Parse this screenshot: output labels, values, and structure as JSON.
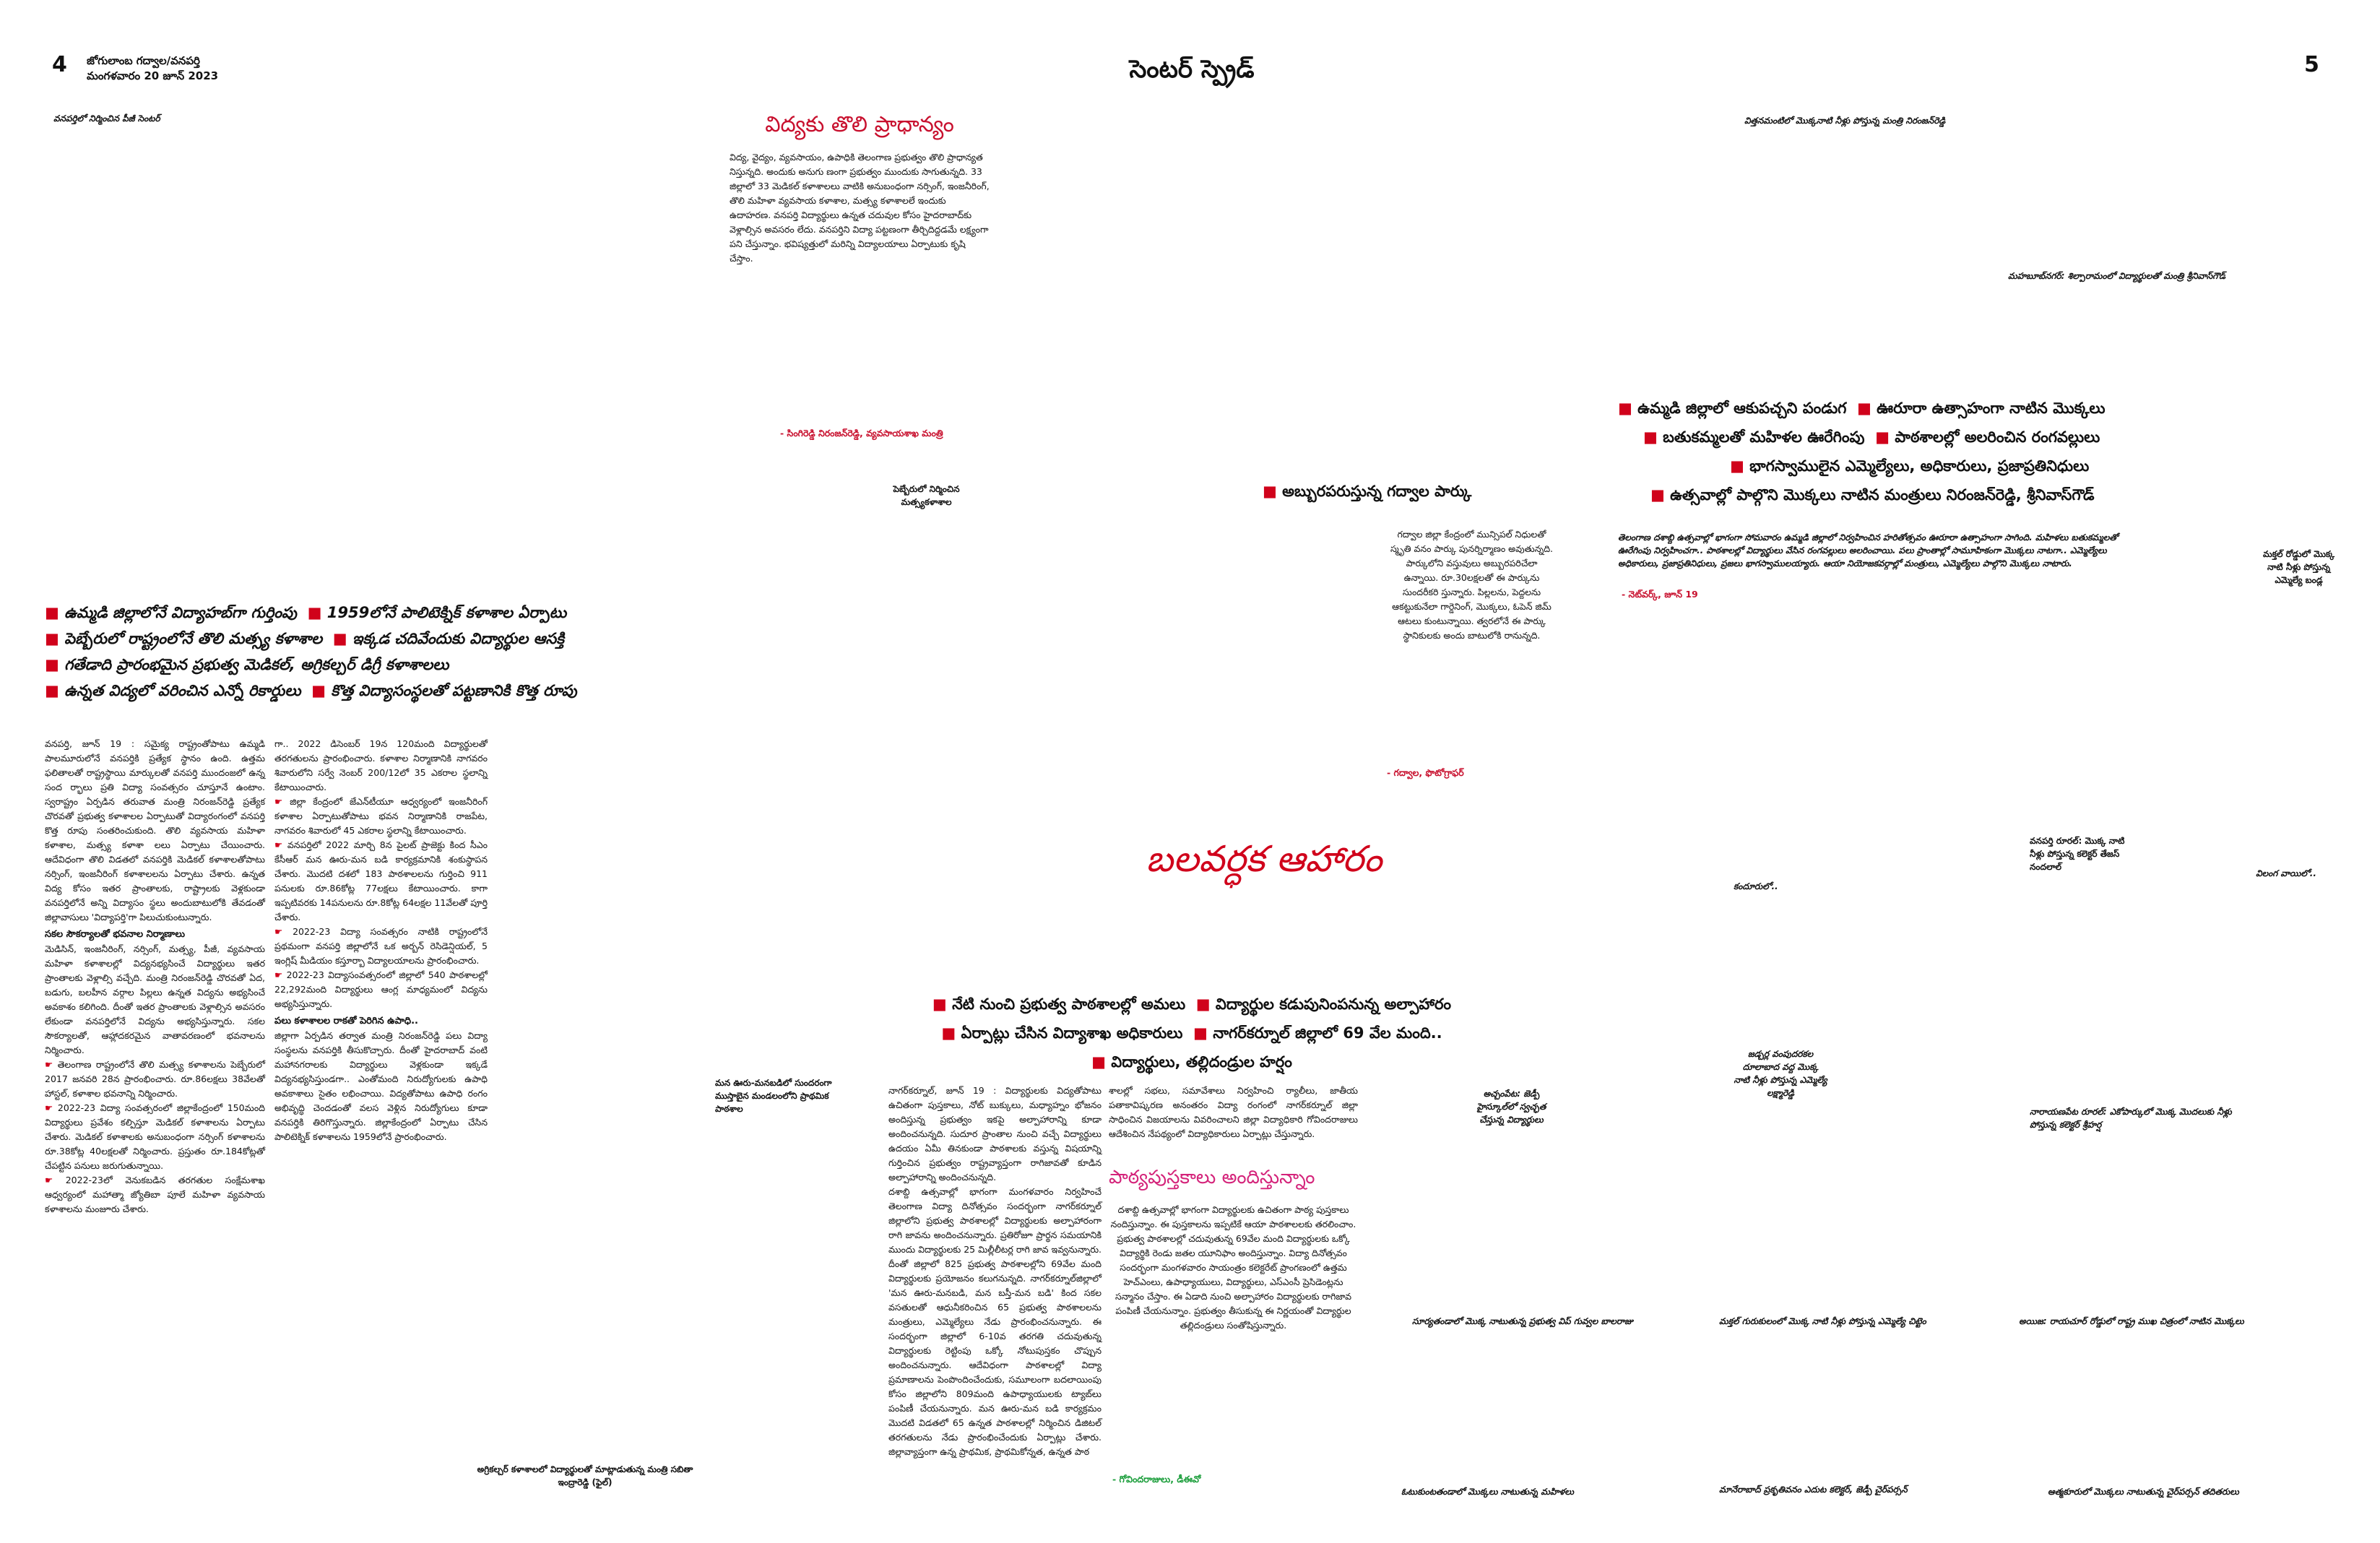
{
  "header": {
    "page_left": "4",
    "page_right": "5",
    "masthead_line1": "జోగులాంబ గద్వాల/వనపర్తి",
    "masthead_line2": "మంగళవారం 20 జూన్ 2023",
    "title": "సెంటర్ స్ప్రెడ్"
  },
  "left": {
    "top_caption": "వనపర్తిలో నిర్మించిన పీజీ సెంటర్",
    "section_title": "విద్యకు తొలి ప్రాధాన్యం",
    "intro": "విద్య, వైద్యం, వ్యవసాయం, ఉపాధికి తెలంగాణ ప్రభుత్వం తొలి ప్రాధాన్యత నిస్తున్నది. అందుకు అనుగు ణంగా ప్రభుత్వం ముందుకు సాగుతున్నది. 33 జిల్లాలో 33 మెడికల్ కళాశాలలు వాటికి అనుబంధంగా నర్సింగ్, ఇంజనీరింగ్, తొలి మహిళా వ్యవసాయ కళాశాల, మత్స్య కళాశాలలే ఇందుకు ఉదాహరణ. వనపర్తి విద్యార్థులు ఉన్నత చదువుల కోసం హైదరాబాద్‌కు వెళ్లాల్సిన అవసరం లేదు. వనపర్తిని విద్యా పట్టణంగా తీర్చిదిద్దడమే లక్ష్యంగా పని చేస్తున్నాం. భవిష్యత్తులో మరిన్ని విద్యాలయాలు ఏర్పాటుకు కృషి చేస్తాం.",
    "intro_signature": "- సింగిరెడ్డి నిరంజన్‌రెడ్డి, వ్యవసాయశాఖ మంత్రి",
    "photo_caption": "పెబ్బేరులో నిర్మించిన మత్స్యకళాశాల",
    "headlines": [
      [
        "ఉమ్మడి జిల్లాలోనే విద్యాహబ్‌గా గుర్తింపు",
        "1959లోనే పాలిటెక్నిక్ కళాశాల ఏర్పాటు"
      ],
      [
        "పెబ్బేరులో రాష్ట్రంలోనే తొలి మత్స్య కళాశాల",
        "ఇక్కడ చదివేందుకు విద్యార్థుల ఆసక్తి"
      ],
      [
        "గతేడాది ప్రారంభమైన ప్రభుత్వ మెడికల్, అగ్రికల్చర్ డిగ్రీ కళాశాలలు"
      ],
      [
        "ఉన్నత విద్యలో వరించిన ఎన్నో రికార్డులు",
        "కొత్త విద్యాసంస్థలతో పట్టణానికి కొత్త రూపు"
      ]
    ],
    "col1": "వనపర్తి, జూన్ 19 : సమైక్య రాష్ట్రంతోపాటు ఉమ్మడి పాలమూరులోనే వనపర్తికి ప్రత్యేక స్థానం ఉంది. ఉత్తమ ఫలితాలతో రాష్ట్రస్థాయి మార్కులతో వనపర్తి ముందంజలో ఉన్న సంద ర్భాలు ప్రతి విద్యా సంవత్సరం చూస్తూనే ఉంటాం. స్వరాష్ట్రం ఏర్పడిన తరువాత మంత్రి నిరంజన్‌రెడ్డి ప్రత్యేక చొరవతో ప్రభుత్వ కళాశాలల ఏర్పాటుతో విద్యారంగంలో వనపర్తి కొత్త రూపు సంతరించుకుంది. తొలి వ్యవసాయ మహిళా కళాశాల, మత్స్య కళాశా లలు ఏర్పాటు చేయించారు. ఆదేవిధంగా తొలి విడతలో వనపర్తికి మెడికల్ కళాశాలతోపాటు నర్సింగ్, ఇంజనీరింగ్ కళాశాలలను ఏర్పాటు చేశారు. ఉన్నత విద్య కోసం ఇతర ప్రాంతాలకు, రాష్ట్రాలకు వెళ్లకుండా వనపర్తిలోనే అన్ని విద్యాసం స్థలు అందుబాటులోకి తేవడంతో జిల్లావాసులు 'విద్యాపర్తి'గా పిలుచుకుంటున్నారు.",
    "col1_sub": "సకల సౌకర్యాలతో భవనాల నిర్మాణాలు",
    "col1b": "మెడిసిన్, ఇంజనీరింగ్, నర్సింగ్, మత్స్య, పీజీ, వ్యవసాయ మహిళా కళాశాలల్లో విద్యనభ్యసించే విద్యార్థులు ఇతర ప్రాంతాలకు వెళ్లాల్సి వచ్చేది. మంత్రి నిరంజన్‌రెడ్డి చొరవతో ఏద, బడుగు, బలహీన వర్గాల పిల్లలు ఉన్నత విద్యను అభ్యసించే అవకాశం కలిగింది. దీంతో ఇతర ప్రాంతాలకు వెళ్లాల్సిన అవసరం లేకుండా వనపర్తిలోనే విద్యను అభ్యసిస్తున్నారు. సకల సౌకర్యాలతో, ఆహ్లాదకరమైన వాతావరణంలో భవనాలను నిర్మించారు.",
    "col1_b1": "తెలంగాణ రాష్ట్రంలోనే తొలి మత్స్య కళాశాలను పెబ్బేరులో 2017 జనవరి 28న ప్రారంభించారు. రూ.86లక్షలు 38వేలతో హాస్టల్, కళాశాల భవనాన్ని నిర్మించారు.",
    "col1_b2": "2022-23 విద్యా సంవత్సరంలో జిల్లాకేంద్రంలో 150మంది విద్యార్థులు ప్రవేశం కల్పిస్తూ మెడికల్ కళాశాలను ఏర్పాటు చేశారు. మెడికల్ కళాశాలకు అనుబంధంగా నర్సింగ్ కళాశాలను రూ.38కోట్ల 40లక్షలతో నిర్మించారు. ప్రస్తుతం రూ.184కోట్లతో చేపట్టిన పనులు జరుగుతున్నాయి.",
    "col1_b3": "2022-23లో వెనుకబడిన తరగతుల సంక్షేమశాఖ ఆధ్వర్యంలో మహాత్మా జ్యోతిబా పూలే మహిళా వ్యవసాయ కళాశాలను మంజూరు చేశారు.",
    "col2": "గా.. 2022 డిసెంబర్ 19న 120మంది విద్యార్థులతో తరగతులను ప్రారంభించారు. కళాశాల నిర్మాణానికి నాగవరం శివారులోని సర్వే నెంబర్ 200/12లో 35 ఎకరాల స్థలాన్ని కేటాయించారు.",
    "col2_b1": "జిల్లా కేంద్రంలో జేఎన్‌టీయూ ఆధ్వర్యంలో ఇంజనీరింగ్ కళాశాల ఏర్పాటుతోపాటు భవన నిర్మాణానికి రాజపేట, నాగవరం శివారులో 45 ఎకరాల స్థలాన్ని కేటాయించారు.",
    "col2_b2": "వనపర్తిలో 2022 మార్చి 8న పైలట్ ప్రాజెక్టు కింద సీఎం కేసీఆర్ మన ఊరు-మన బడి కార్యక్రమానికి శంకుస్థాపన చేశారు. మొదటి దశలో 183 పాఠశాలలను గుర్తించి 911 పనులకు రూ.86కోట్ల 77లక్షలు కేటాయించారు. కాగా ఇప్పటివరకు 14పనులను రూ.8కోట్ల 64లక్షల 11వేలతో పూర్తి చేశారు.",
    "col2_b3": "2022-23 విద్యా సంవత్సరం నాటికి రాష్ట్రంలోనే ప్రథమంగా వనపర్తి జిల్లాలోనే ఒక అర్బన్ రెసిడెన్షియల్, 5 ఇంగ్లిష్ మీడియం కస్తూర్బా విద్యాలయాలను ప్రారంభించారు.",
    "col2_b4": "2022-23 విద్యాసంవత్సరంలో జిల్లాలో 540 పాఠశాలల్లో 22,292మంది విద్యార్థులు ఆంగ్ల మాధ్యమంలో విద్యను అభ్యసిస్తున్నారు.",
    "col2_sub": "పలు కళాశాలల రాకతో పెరిగిన ఉపాధి..",
    "col2b": "జిల్లాగా ఏర్పడిన తర్వాత మంత్రి నిరంజన్‌రెడ్డి పలు విద్యా సంస్థలను వనపర్తికి తీసుకొచ్చారు. దీంతో హైదరాబాద్ వంటి మహానగరాలకు విద్యార్థులు వెళ్లకుండా ఇక్కడే విద్యనభ్యసిస్తుండగా.. ఎంతోమంది నిరుద్యోగులకు ఉపాధి అవకాశాలు సైతం లభించాయి. విద్యతోపాటు ఉపాధి రంగం అభివృద్ధి చెందడంతో వలస వెళ్లిన నిరుద్యోగులు కూడా వనపర్తికి తిరిగొస్తున్నారు. జిల్లాకేంద్రంలో ఏర్పాటు చేసిన పాలిటెక్నిక్ కళాశాలను 1959లోనే ప్రారంభించారు.",
    "bottom_caption": "అగ్రికల్చర్ కళాశాలలో విద్యార్థులతో మాట్లాడుతున్న మంత్రి సబితా ఇంద్రారెడ్డి (ఫైల్)"
  },
  "center": {
    "park_headline": "అబ్బురపరుస్తున్న గద్వాల పార్కు",
    "park_text": "గద్వాల జిల్లా కేంద్రంలో మున్సిపల్ నిధులతో స్మృతి వనం పార్కు పునర్నిర్మాణం అవుతున్నది. పార్కులోని వస్తువులు అబ్బురపరిచేలా ఉన్నాయి. రూ.30లక్షలతో ఈ పార్కును సుందరీకరి స్తున్నారు. పిల్లలను, పెద్దలను ఆకట్టుకునేలా గార్డెనింగ్, మొక్కలు, ఓపెన్ జిమ్ ఆటలు కుంటున్నాయి. త్వరలోనే ఈ పార్కు స్థానికులకు అందు బాటులోకి రానున్నది.",
    "park_signature": "- గద్వాల, ఫొటోగ్రాఫర్",
    "mid_caption": "మన ఊరు-మనబడిలో సుందరంగా ముస్తాబైన మండలంలోని ప్రాథమిక పాఠశాల",
    "big_title": "బలవర్ధక ఆహారం",
    "headlines": [
      [
        "నేటి నుంచి ప్రభుత్వ పాఠశాలల్లో అమలు",
        "విద్యార్థుల కడుపునింపనున్న అల్పాహారం"
      ],
      [
        "ఏర్పాట్లు చేసిన విద్యాశాఖ అధికారులు",
        "నాగర్‌కర్నూల్ జిల్లాలో 69 వేల మంది.."
      ],
      [
        "విద్యార్థులు, తల్లిదండ్రుల హర్షం"
      ]
    ],
    "col1": "నాగర్‌కర్నూల్, జూన్ 19 : విద్యార్థులకు విద్యతోపాటు ఉచితంగా పుస్తకాలు, నోట్ బుక్కులు, మధ్యాహ్నం భోజనం అందిస్తున్న ప్రభుత్వం ఇకపై అల్పాహారాన్ని కూడా అందించనున్నది. సుదూర ప్రాంతాల నుంచి వచ్చే విద్యార్థులు ఉదయం ఏమీ తినకుండా పాఠశాలకు వస్తున్న విషయాన్ని గుర్తించిన ప్రభుత్వం రాష్ట్రవ్యాప్తంగా రాగిజావతో కూడిన అల్పాహారాన్ని అందించనున్నది.",
    "col1b": "దశాబ్ది ఉత్సవాల్లో భాగంగా మంగళవారం నిర్వహించే తెలంగాణ విద్యా దినోత్సవం సందర్భంగా నాగర్‌కర్నూల్ జిల్లాలోని ప్రభుత్వ పాఠశాలల్లో విద్యార్థులకు అల్పాహారంగా రాగి జావను అందించనున్నారు. ప్రతిరోజూ ప్రార్థన సమయానికి ముందు విద్యార్థులకు 25 మిల్లీలీటర్ల రాగి జావ ఇవ్వనున్నారు. దీంతో జిల్లాలో 825 ప్రభుత్వ పాఠశాలల్లోని 69వేల మంది విద్యార్థులకు ప్రయోజనం కలుగనున్నది. నాగర్‌కర్నూల్‌జిల్లాలో 'మన ఊరు-మనబడి, మన బస్తీ-మన బడి' కింద సకల వసతులతో ఆధునీకరించిన 65 ప్రభుత్వ పాఠశాలలను మంత్రులు, ఎమ్మెల్యేలు నేడు ప్రారంభించనున్నారు. ఈ సందర్భంగా జిల్లాలో 6-10వ తరగతి చదువుతున్న విద్యార్థులకు రెట్టింపు ఒక్కో నోటుపుస్తకం చొప్పున అందించనున్నారు. ఆదేవిధంగా పాఠశాలల్లో విద్యా ప్రమాణాలను పెంపొందించేందుకు, సమూలంగా బదలాయింపు కోసం జిల్లాలోని 809మంది ఉపాధ్యాయులకు ట్యాబ్‌లు పంపిణీ చేయనున్నారు. మన ఊరు-మన బడి కార్యక్రమం మొదటి విడతలో 65 ఉన్నత పాఠశాలల్లో నిర్మించిన డిజిటల్ తరగతులను నేడు ప్రారంభించేందుకు ఏర్పాట్లు చేశారు. జిల్లావ్యాప్తంగా ఉన్న ప్రాథమిక, ప్రాథమికోన్నత, ఉన్నత పాఠ",
    "col2": "శాలల్లో సభలు, సమావేశాలు నిర్వహించి ర్యాలీలు, జాతీయ పతాకావిష్కరణ అనంతరం విద్యా రంగంలో నాగర్‌కర్నూల్ జిల్లా సాధించిన విజయాలను వివరించాలని జిల్లా విద్యాధికారి గోవిందరాజులు ఆదేశించిన నేపథ్యంలో విద్యాధికారులు ఏర్పాట్లు చేస్తున్నారు.",
    "sub_title": "పాఠ్యపుస్తకాలు అందిస్తున్నాం",
    "sub_text": "దశాబ్ది ఉత్సవాల్లో భాగంగా విద్యార్థులకు ఉచితంగా పాఠ్య పుస్తకాలు నందిస్తున్నాం. ఈ పుస్తకాలను ఇప్పటికే ఆయా పాఠశాలలకు తరలించాం. ప్రభుత్వ పాఠశాలల్లో చదువుతున్న 69వేల మంది విద్యార్థులకు ఒక్కో విద్యార్థికి రెండు జతల యూనిఫాం అందిస్తున్నాం. విద్యా దినోత్సవం సందర్భంగా మంగళవారం సాయంత్రం కలెక్టరేట్ ప్రాంగణంలో ఉత్తమ హెచ్‌ఎంలు, ఉపాధ్యాయులు, విద్యార్థులు, ఎస్ఎంసీ ప్రెసిడెంట్లను సన్మానం చేస్తాం. ఈ ఏడాది నుంచి అల్పాహారం విద్యార్థులకు రాగిజావ పంపిణీ చేయనున్నాం. ప్రభుత్వం తీసుకున్న ఈ నిర్ణయంతో విద్యార్థుల తల్లిదండ్రులు సంతోషిస్తున్నారు.",
    "sub_signature": "- గోవిందరాజులు, డీఈవో"
  },
  "right": {
    "top_caption": "విత్తనమంటిలో మొక్కనాటి నీళ్లు పోస్తున్న మంత్రి నిరంజన్‌రెడ్డి",
    "caption2": "మహబూబ్‌నగర్: శిల్పారామంలో విద్యార్థులతో మంత్రి శ్రీనివాస్‌గౌడ్",
    "headlines": [
      [
        "ఉమ్మడి జిల్లాలో ఆకుపచ్చని పండుగ",
        "ఊరూరా ఉత్సాహంగా నాటిన మొక్కలు"
      ],
      [
        "బతుకమ్మలతో మహిళల ఊరేగింపు",
        "పాఠశాలల్లో అలరించిన రంగవల్లులు"
      ],
      [
        "భాగస్వాములైన ఎమ్మెల్యేలు, అధికారులు, ప్రజాప్రతినిధులు"
      ],
      [
        "ఉత్సవాల్లో పాల్గొని మొక్కలు నాటిన మంత్రులు నిరంజన్‌రెడ్డి, శ్రీనివాస్‌గౌడ్"
      ]
    ],
    "summary": "తెలంగాణ దశాబ్ది ఉత్సవాల్లో భాగంగా సోమవారం ఉమ్మడి జిల్లాలో నిర్వహించిన హరితోత్సవం ఊరూరా ఉత్సాహంగా సాగింది. మహిళలు బతుకమ్మలతో ఊరేగింపు నిర్వహించగా.. పాఠశాలల్లో విద్యార్థులు వేసిన రంగవల్లులు అలరించాయి. పలు ప్రాంతాల్లో సామూహికంగా మొక్కలు నాటగా.. ఎమ్మెల్యేలు అధికారులు, ప్రజాప్రతినిధులు, ప్రజలు భాగస్వాములయ్యారు. ఆయా నియోజకవర్గాల్లో మంత్రులు, ఎమ్మెల్యేలు పాల్గొని మొక్కలు నాటారు.",
    "summary_signature": "- నెట్‌వర్క్, జూన్ 19",
    "caption_far": "మక్తల్ రోడ్డులో మొక్క నాటి నీళ్లు పోస్తున్న ఎమ్మెల్యే బండ్ల",
    "caption_rural": "వనపర్తి రూరల్: మొక్క నాటి నీళ్లు పోస్తున్న కలెక్టర్ తేజస్ నందలాల్",
    "caption_kandaa": "కందూరులో..",
    "caption_village": "విలంగ వాయిలో..",
    "caption_achampet": "అచ్చంపేట: జెడ్పీ హైస్కూల్‌లో స్వచ్ఛత చేస్తున్న విద్యార్థులు",
    "caption_jadcherla": "జడ్చర్ల వంపుదరకల దూలాబాద వద్ద మొక్క నాటి నీళ్లు పోస్తున్న ఎమ్మెల్యే లక్ష్మారెడ్డి",
    "caption_narayanpet": "నారాయణపేట రూరల్: ఎకోపార్కులో మొక్క మొదలుకు నీళ్లు పోస్తున్న కలెక్టర్ శ్రీహర్ష",
    "bottom1": "సూర్యతండాలో మొక్క నాటుతున్న ప్రభుత్వ విప్ గువ్వల బాలరాజు",
    "bottom2": "మక్తల్ గురుకులంలో మొక్క నాటి నీళ్లు పోస్తున్న ఎమ్మెల్యే చిట్టెం",
    "bottom3": "అయిజ: రాయచూర్ రోడ్డులో రాష్ట్ర ముఖ చిత్రంలో నాటిన మొక్కలు",
    "bottom4": "ఓటుకుంటతండాలో మొక్కలు నాటుతున్న మహిళలు",
    "bottom5": "మానేరాబాద్ ప్రకృతివనం ఎదుట కలెక్టర్, జెడ్పీ చైర్‌పర్సన్",
    "bottom6": "ఆత్మకూరులో మొక్కలు నాటుతున్న చైర్‌పర్సన్ తదితరులు"
  }
}
